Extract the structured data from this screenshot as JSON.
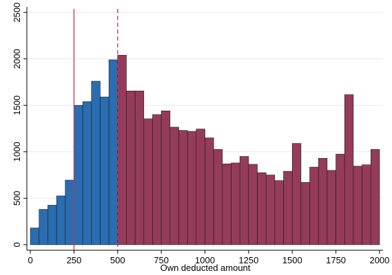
{
  "chart_data": {
    "type": "bar",
    "title": "",
    "xlabel": "Own deducted amount",
    "ylabel": "",
    "xlim": [
      -20,
      2020
    ],
    "ylim": [
      -60,
      2560
    ],
    "bin_width": 50,
    "grid": true,
    "x_ticks": [
      0,
      250,
      500,
      750,
      1000,
      1250,
      1500,
      1750,
      2000
    ],
    "y_ticks": [
      0,
      500,
      1000,
      1500,
      2000,
      2500
    ],
    "x_tick_labels": [
      "0",
      "250",
      "500",
      "750",
      "1000",
      "1250",
      "1500",
      "1750",
      "2000"
    ],
    "y_tick_labels": [
      "0",
      "500",
      "1000",
      "1500",
      "2000",
      "2500"
    ],
    "reference_lines": [
      {
        "x": 250,
        "style": "solid",
        "color": "#c0315a"
      },
      {
        "x": 500,
        "style": "dashed",
        "color": "#c0315a"
      }
    ],
    "series": [
      {
        "color": "#2a6db0",
        "bins": [
          {
            "x0": 0,
            "x1": 50,
            "value": 180
          },
          {
            "x0": 50,
            "x1": 100,
            "value": 380
          },
          {
            "x0": 100,
            "x1": 150,
            "value": 425
          },
          {
            "x0": 150,
            "x1": 200,
            "value": 525
          },
          {
            "x0": 200,
            "x1": 250,
            "value": 695
          },
          {
            "x0": 250,
            "x1": 300,
            "value": 1500
          },
          {
            "x0": 300,
            "x1": 350,
            "value": 1540
          },
          {
            "x0": 350,
            "x1": 400,
            "value": 1760
          },
          {
            "x0": 400,
            "x1": 450,
            "value": 1590
          },
          {
            "x0": 450,
            "x1": 500,
            "value": 1990
          }
        ]
      },
      {
        "color": "#943c5a",
        "bins": [
          {
            "x0": 500,
            "x1": 550,
            "value": 2040
          },
          {
            "x0": 550,
            "x1": 600,
            "value": 1655
          },
          {
            "x0": 600,
            "x1": 650,
            "value": 1655
          },
          {
            "x0": 650,
            "x1": 700,
            "value": 1355
          },
          {
            "x0": 700,
            "x1": 750,
            "value": 1400
          },
          {
            "x0": 750,
            "x1": 800,
            "value": 1440
          },
          {
            "x0": 800,
            "x1": 850,
            "value": 1265
          },
          {
            "x0": 850,
            "x1": 900,
            "value": 1230
          },
          {
            "x0": 900,
            "x1": 950,
            "value": 1220
          },
          {
            "x0": 950,
            "x1": 1000,
            "value": 1245
          },
          {
            "x0": 1000,
            "x1": 1050,
            "value": 1150
          },
          {
            "x0": 1050,
            "x1": 1100,
            "value": 1025
          },
          {
            "x0": 1100,
            "x1": 1150,
            "value": 870
          },
          {
            "x0": 1150,
            "x1": 1200,
            "value": 880
          },
          {
            "x0": 1200,
            "x1": 1250,
            "value": 950
          },
          {
            "x0": 1250,
            "x1": 1300,
            "value": 865
          },
          {
            "x0": 1300,
            "x1": 1350,
            "value": 775
          },
          {
            "x0": 1350,
            "x1": 1400,
            "value": 750
          },
          {
            "x0": 1400,
            "x1": 1450,
            "value": 690
          },
          {
            "x0": 1450,
            "x1": 1500,
            "value": 790
          },
          {
            "x0": 1500,
            "x1": 1550,
            "value": 1090
          },
          {
            "x0": 1550,
            "x1": 1600,
            "value": 670
          },
          {
            "x0": 1600,
            "x1": 1650,
            "value": 835
          },
          {
            "x0": 1650,
            "x1": 1700,
            "value": 930
          },
          {
            "x0": 1700,
            "x1": 1750,
            "value": 800
          },
          {
            "x0": 1750,
            "x1": 1800,
            "value": 975
          },
          {
            "x0": 1800,
            "x1": 1850,
            "value": 1615
          },
          {
            "x0": 1850,
            "x1": 1900,
            "value": 845
          },
          {
            "x0": 1900,
            "x1": 1950,
            "value": 860
          },
          {
            "x0": 1950,
            "x1": 2000,
            "value": 1025
          }
        ]
      }
    ]
  }
}
